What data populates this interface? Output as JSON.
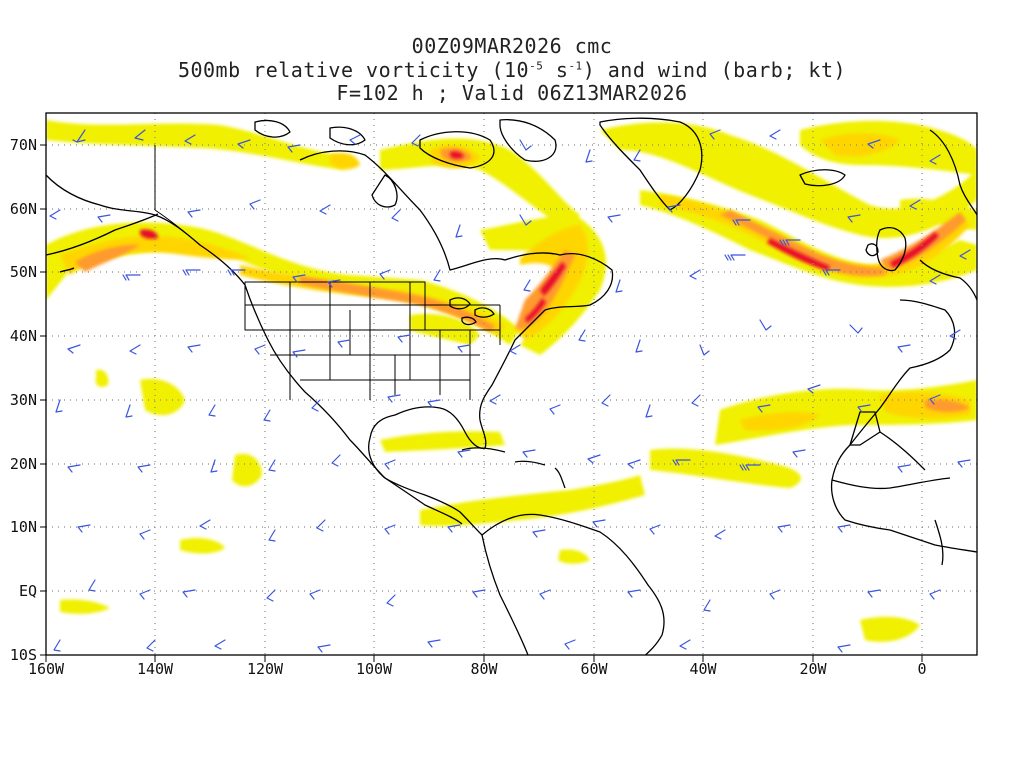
{
  "title": {
    "line1": "00Z09MAR2026 cmc",
    "line2_pre": "500mb relative vorticity (10",
    "line2_exp1": "-5",
    "line2_mid": " s",
    "line2_exp2": "-1",
    "line2_post": ") and wind (barb; kt)",
    "line3": "F=102 h ; Valid 06Z13MAR2026"
  },
  "map": {
    "lon_range": [
      -160,
      10
    ],
    "lat_range": [
      -10,
      75
    ],
    "lat_labels": [
      "70N",
      "60N",
      "50N",
      "40N",
      "30N",
      "20N",
      "10N",
      "EQ",
      "10S"
    ],
    "lon_labels": [
      "160W",
      "140W",
      "120W",
      "100W",
      "80W",
      "60W",
      "40W",
      "20W",
      "0"
    ],
    "colors": {
      "vort_low": "#f0f000",
      "vort_mid": "#ffd500",
      "vort_high": "#ff9a2e",
      "vort_max": "#e8102a",
      "barb": "#3a55e0",
      "coast": "#000000",
      "grid": "#888888"
    }
  }
}
